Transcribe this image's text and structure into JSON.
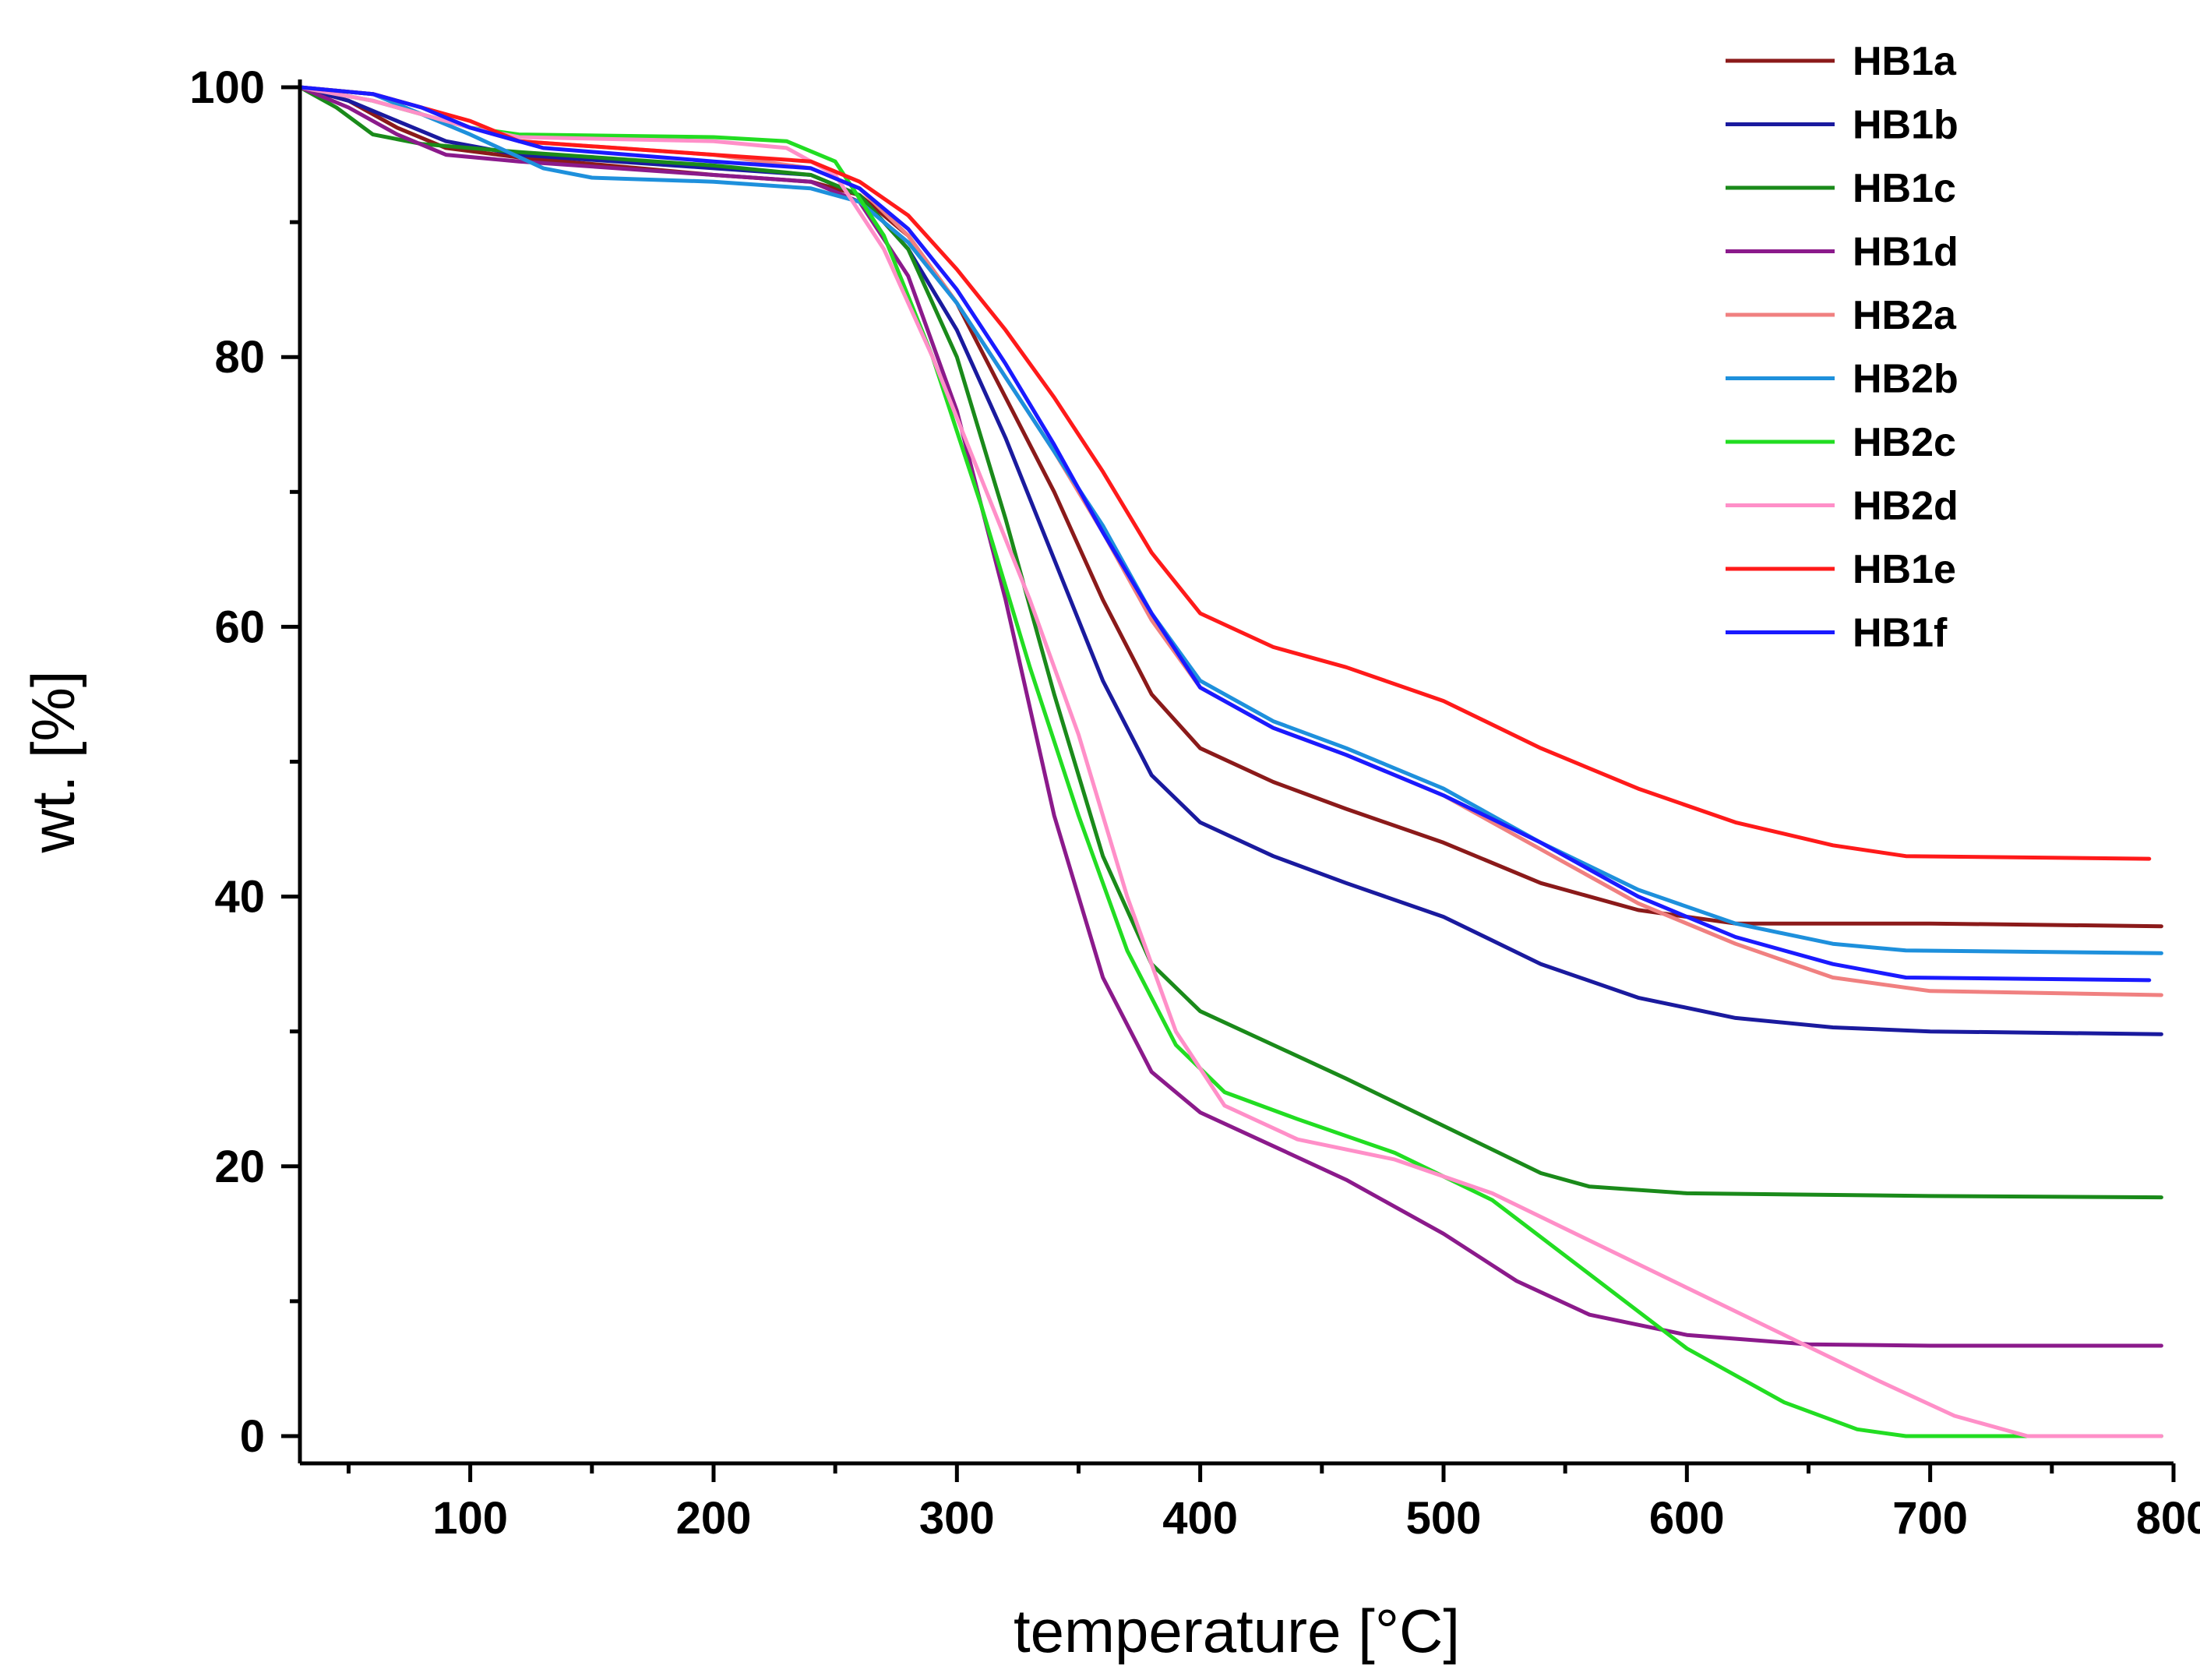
{
  "chart_data": {
    "type": "line",
    "title": "",
    "xlabel": "temperature [°C]",
    "ylabel": "wt. [%]",
    "xlim": [
      30,
      800
    ],
    "ylim": [
      0,
      100
    ],
    "xticks": [
      100,
      200,
      300,
      400,
      500,
      600,
      700,
      800
    ],
    "xtick_labels": [
      "100",
      "200",
      "300",
      "400",
      "500",
      "600",
      "700",
      "800"
    ],
    "yticks": [
      0,
      20,
      40,
      60,
      80,
      100
    ],
    "ytick_labels": [
      "0",
      "20",
      "40",
      "60",
      "80",
      "100"
    ],
    "grid": false,
    "legend_position": "top-right",
    "series": [
      {
        "name": "HB1a",
        "color": "#8b1a1a",
        "points": [
          [
            30,
            100
          ],
          [
            50,
            99
          ],
          [
            70,
            97
          ],
          [
            90,
            95.5
          ],
          [
            120,
            94.8
          ],
          [
            200,
            93.5
          ],
          [
            240,
            93
          ],
          [
            260,
            92
          ],
          [
            280,
            89
          ],
          [
            300,
            84
          ],
          [
            320,
            77
          ],
          [
            340,
            70
          ],
          [
            360,
            62
          ],
          [
            380,
            55
          ],
          [
            400,
            51
          ],
          [
            430,
            48.5
          ],
          [
            460,
            46.5
          ],
          [
            500,
            44
          ],
          [
            540,
            41
          ],
          [
            580,
            39
          ],
          [
            620,
            38
          ],
          [
            700,
            38
          ],
          [
            795,
            37.8
          ]
        ]
      },
      {
        "name": "HB1b",
        "color": "#1a1a9e",
        "points": [
          [
            30,
            100
          ],
          [
            50,
            99
          ],
          [
            70,
            97.5
          ],
          [
            90,
            96
          ],
          [
            120,
            95
          ],
          [
            200,
            94
          ],
          [
            240,
            93.5
          ],
          [
            260,
            92
          ],
          [
            280,
            88
          ],
          [
            300,
            82
          ],
          [
            320,
            74
          ],
          [
            340,
            65
          ],
          [
            360,
            56
          ],
          [
            380,
            49
          ],
          [
            400,
            45.5
          ],
          [
            430,
            43
          ],
          [
            460,
            41
          ],
          [
            500,
            38.5
          ],
          [
            540,
            35
          ],
          [
            580,
            32.5
          ],
          [
            620,
            31
          ],
          [
            660,
            30.3
          ],
          [
            700,
            30
          ],
          [
            795,
            29.8
          ]
        ]
      },
      {
        "name": "HB1c",
        "color": "#1a8a1a",
        "points": [
          [
            30,
            100
          ],
          [
            45,
            98.5
          ],
          [
            60,
            96.5
          ],
          [
            80,
            95.8
          ],
          [
            120,
            95.2
          ],
          [
            200,
            94.2
          ],
          [
            240,
            93.5
          ],
          [
            260,
            92
          ],
          [
            280,
            88
          ],
          [
            300,
            80
          ],
          [
            320,
            68
          ],
          [
            340,
            55
          ],
          [
            360,
            43
          ],
          [
            380,
            35
          ],
          [
            400,
            31.5
          ],
          [
            430,
            29
          ],
          [
            460,
            26.5
          ],
          [
            500,
            23
          ],
          [
            540,
            19.5
          ],
          [
            560,
            18.5
          ],
          [
            600,
            18
          ],
          [
            700,
            17.8
          ],
          [
            795,
            17.7
          ]
        ]
      },
      {
        "name": "HB1d",
        "color": "#8b1a8b",
        "points": [
          [
            30,
            100
          ],
          [
            50,
            98.5
          ],
          [
            70,
            96.5
          ],
          [
            90,
            95
          ],
          [
            120,
            94.5
          ],
          [
            200,
            93.5
          ],
          [
            240,
            93
          ],
          [
            260,
            91.5
          ],
          [
            280,
            86
          ],
          [
            300,
            76
          ],
          [
            320,
            62
          ],
          [
            340,
            46
          ],
          [
            360,
            34
          ],
          [
            380,
            27
          ],
          [
            400,
            24
          ],
          [
            430,
            21.5
          ],
          [
            460,
            19
          ],
          [
            500,
            15
          ],
          [
            530,
            11.5
          ],
          [
            560,
            9
          ],
          [
            600,
            7.5
          ],
          [
            650,
            6.8
          ],
          [
            700,
            6.7
          ],
          [
            795,
            6.7
          ]
        ]
      },
      {
        "name": "HB2a",
        "color": "#f08080",
        "points": [
          [
            30,
            100
          ],
          [
            60,
            99.5
          ],
          [
            80,
            98.5
          ],
          [
            100,
            97
          ],
          [
            120,
            96
          ],
          [
            200,
            95
          ],
          [
            240,
            94
          ],
          [
            260,
            92.5
          ],
          [
            280,
            89
          ],
          [
            300,
            84
          ],
          [
            320,
            78.5
          ],
          [
            340,
            73
          ],
          [
            360,
            67
          ],
          [
            380,
            60.5
          ],
          [
            400,
            55.5
          ],
          [
            430,
            52.5
          ],
          [
            460,
            50.5
          ],
          [
            500,
            47.5
          ],
          [
            540,
            43.5
          ],
          [
            580,
            39.5
          ],
          [
            620,
            36.5
          ],
          [
            660,
            34
          ],
          [
            700,
            33
          ],
          [
            795,
            32.7
          ]
        ]
      },
      {
        "name": "HB2b",
        "color": "#1e90dc",
        "points": [
          [
            30,
            100
          ],
          [
            60,
            99.5
          ],
          [
            80,
            98
          ],
          [
            100,
            96.5
          ],
          [
            130,
            94
          ],
          [
            150,
            93.3
          ],
          [
            200,
            93
          ],
          [
            240,
            92.5
          ],
          [
            260,
            91.5
          ],
          [
            280,
            88.5
          ],
          [
            300,
            84
          ],
          [
            320,
            78.5
          ],
          [
            340,
            73
          ],
          [
            360,
            67.5
          ],
          [
            380,
            61
          ],
          [
            400,
            56
          ],
          [
            430,
            53
          ],
          [
            460,
            51
          ],
          [
            500,
            48
          ],
          [
            540,
            44
          ],
          [
            580,
            40.5
          ],
          [
            620,
            38
          ],
          [
            660,
            36.5
          ],
          [
            690,
            36
          ],
          [
            795,
            35.8
          ]
        ]
      },
      {
        "name": "HB2c",
        "color": "#22dd22",
        "points": [
          [
            30,
            100
          ],
          [
            60,
            99
          ],
          [
            80,
            98
          ],
          [
            100,
            97
          ],
          [
            120,
            96.5
          ],
          [
            200,
            96.3
          ],
          [
            230,
            96
          ],
          [
            250,
            94.5
          ],
          [
            270,
            89
          ],
          [
            290,
            80
          ],
          [
            310,
            69
          ],
          [
            330,
            57
          ],
          [
            350,
            46
          ],
          [
            370,
            36
          ],
          [
            390,
            29
          ],
          [
            410,
            25.5
          ],
          [
            440,
            23.5
          ],
          [
            480,
            21
          ],
          [
            520,
            17.5
          ],
          [
            560,
            12
          ],
          [
            600,
            6.5
          ],
          [
            640,
            2.5
          ],
          [
            670,
            0.5
          ],
          [
            690,
            0
          ],
          [
            795,
            0
          ]
        ]
      },
      {
        "name": "HB2d",
        "color": "#ff8fc8",
        "points": [
          [
            30,
            100
          ],
          [
            60,
            99
          ],
          [
            80,
            98
          ],
          [
            100,
            97
          ],
          [
            120,
            96.3
          ],
          [
            200,
            96
          ],
          [
            230,
            95.5
          ],
          [
            250,
            93.5
          ],
          [
            270,
            88
          ],
          [
            290,
            80
          ],
          [
            310,
            71
          ],
          [
            330,
            62
          ],
          [
            350,
            52
          ],
          [
            370,
            40
          ],
          [
            390,
            30
          ],
          [
            410,
            24.5
          ],
          [
            440,
            22
          ],
          [
            480,
            20.5
          ],
          [
            520,
            18
          ],
          [
            560,
            14.5
          ],
          [
            600,
            11
          ],
          [
            640,
            7.5
          ],
          [
            680,
            4
          ],
          [
            710,
            1.5
          ],
          [
            740,
            0
          ],
          [
            795,
            0
          ]
        ]
      },
      {
        "name": "HB1e",
        "color": "#ff1a1a",
        "points": [
          [
            30,
            100
          ],
          [
            60,
            99.5
          ],
          [
            80,
            98.5
          ],
          [
            100,
            97.5
          ],
          [
            120,
            96
          ],
          [
            200,
            95
          ],
          [
            240,
            94.5
          ],
          [
            260,
            93
          ],
          [
            280,
            90.5
          ],
          [
            300,
            86.5
          ],
          [
            320,
            82
          ],
          [
            340,
            77
          ],
          [
            360,
            71.5
          ],
          [
            380,
            65.5
          ],
          [
            400,
            61
          ],
          [
            430,
            58.5
          ],
          [
            460,
            57
          ],
          [
            500,
            54.5
          ],
          [
            540,
            51
          ],
          [
            580,
            48
          ],
          [
            620,
            45.5
          ],
          [
            660,
            43.8
          ],
          [
            690,
            43
          ],
          [
            790,
            42.8
          ]
        ]
      },
      {
        "name": "HB1f",
        "color": "#1a1aff",
        "points": [
          [
            30,
            100
          ],
          [
            60,
            99.5
          ],
          [
            80,
            98.5
          ],
          [
            100,
            97
          ],
          [
            130,
            95.5
          ],
          [
            200,
            94.5
          ],
          [
            240,
            94
          ],
          [
            260,
            92.5
          ],
          [
            280,
            89.5
          ],
          [
            300,
            85
          ],
          [
            320,
            79.5
          ],
          [
            340,
            73.5
          ],
          [
            360,
            67
          ],
          [
            380,
            61
          ],
          [
            400,
            55.5
          ],
          [
            430,
            52.5
          ],
          [
            460,
            50.5
          ],
          [
            500,
            47.5
          ],
          [
            540,
            44
          ],
          [
            580,
            40
          ],
          [
            620,
            37
          ],
          [
            660,
            35
          ],
          [
            690,
            34
          ],
          [
            790,
            33.8
          ]
        ]
      }
    ]
  }
}
